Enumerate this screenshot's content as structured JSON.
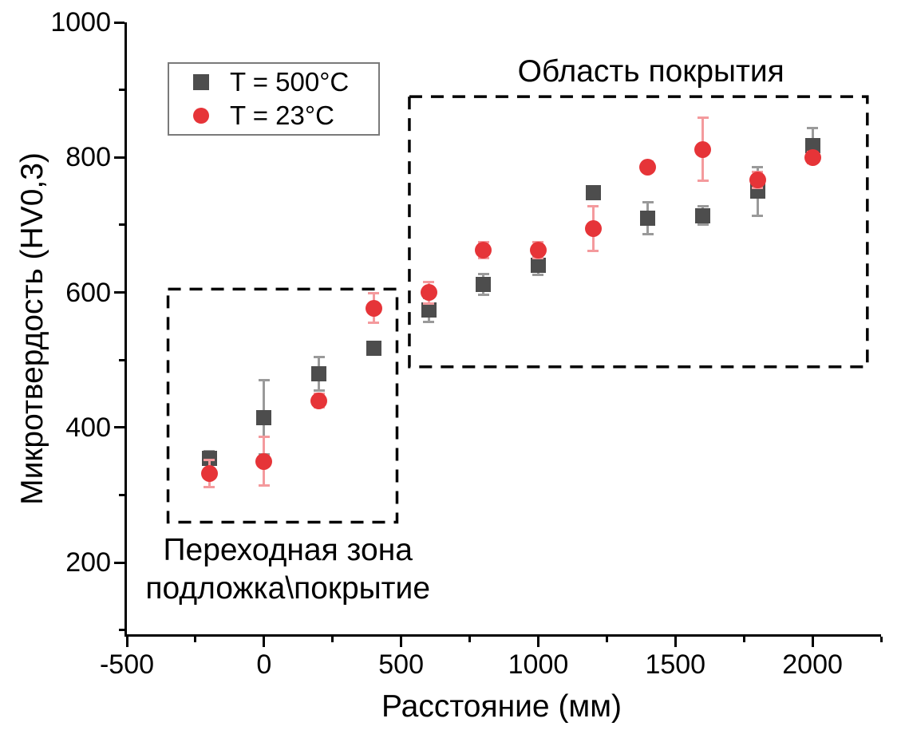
{
  "chart_data": {
    "type": "scatter",
    "title": "",
    "xlabel": "Расстояние (мм)",
    "ylabel": "Микротвердость (HV0,3)",
    "xlim": [
      -500,
      2250
    ],
    "ylim": [
      94,
      1000
    ],
    "grid": false,
    "legend_position": "top-left",
    "colors": {
      "series_500c": "#4d4d4d",
      "series_500c_errorbar": "#9a9a9a",
      "series_23c": "#e63438",
      "series_23c_errorbar": "#f49a9d",
      "axis": "#000000",
      "legend_border": "#7a7a7a",
      "annotation_box": "#000000"
    },
    "x_axis": {
      "major": [
        {
          "v": -500,
          "label": "-500"
        },
        {
          "v": 0,
          "label": "0"
        },
        {
          "v": 500,
          "label": "500"
        },
        {
          "v": 1000,
          "label": "1000"
        },
        {
          "v": 1500,
          "label": "1500"
        },
        {
          "v": 2000,
          "label": "2000"
        }
      ],
      "minor": [
        -250,
        250,
        750,
        1250,
        1750,
        2250
      ]
    },
    "y_axis": {
      "major": [
        {
          "v": 200,
          "label": "200"
        },
        {
          "v": 400,
          "label": "400"
        },
        {
          "v": 600,
          "label": "600"
        },
        {
          "v": 800,
          "label": "800"
        },
        {
          "v": 1000,
          "label": "1000"
        }
      ],
      "minor": [
        100,
        300,
        500,
        700,
        900
      ]
    },
    "series": [
      {
        "name": "T = 500°C",
        "marker": "square",
        "color": "#4d4d4d",
        "err_color": "#9a9a9a",
        "x": [
          -200,
          0,
          200,
          400,
          600,
          800,
          1000,
          1200,
          1400,
          1600,
          1800,
          2000
        ],
        "y": [
          355,
          415,
          480,
          517,
          574,
          612,
          640,
          748,
          710,
          714,
          750,
          818
        ],
        "yerr": [
          10,
          55,
          25,
          6,
          18,
          15,
          14,
          6,
          24,
          14,
          36,
          26
        ]
      },
      {
        "name": "T = 23°C",
        "marker": "circle",
        "color": "#e63438",
        "err_color": "#f49a9d",
        "x": [
          -200,
          0,
          200,
          400,
          600,
          800,
          1000,
          1200,
          1400,
          1600,
          1800,
          2000
        ],
        "y": [
          332,
          350,
          440,
          577,
          600,
          663,
          663,
          695,
          786,
          812,
          767,
          800
        ],
        "yerr": [
          20,
          36,
          10,
          22,
          16,
          12,
          12,
          33,
          8,
          47,
          12,
          8
        ]
      }
    ],
    "boxes": [
      {
        "name": "coating-region-box",
        "x0": 530,
        "x1": 2200,
        "y0": 490,
        "y1": 890
      },
      {
        "name": "transition-region-box",
        "x0": -350,
        "x1": 485,
        "y0": 260,
        "y1": 605
      }
    ],
    "annotations": [
      {
        "text": "Область покрытия",
        "x": 1411,
        "y": 924
      },
      {
        "text": "Переходная зона",
        "x": 87,
        "y": 216
      },
      {
        "text": "подложка\\покрытие",
        "x": 87,
        "y": 159
      }
    ]
  }
}
